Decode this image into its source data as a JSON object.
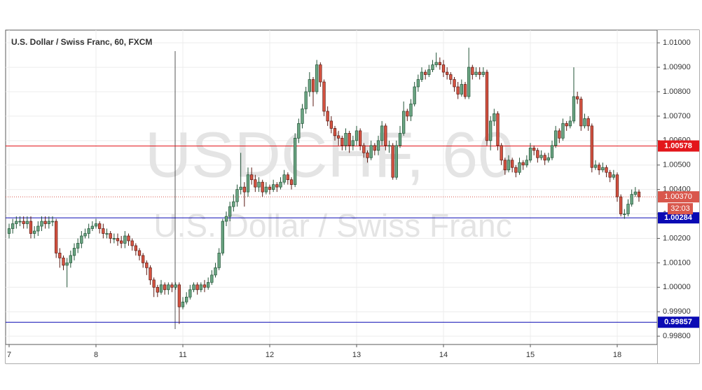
{
  "chart_data": {
    "type": "candlestick",
    "title": "U.S. Dollar / Swiss Franc, 60, FXCM",
    "watermark": "USDCHF, 60",
    "watermark_subtitle": "U.S. Dollar / Swiss Franc",
    "categories": [
      "7",
      null,
      null,
      null,
      null,
      null,
      null,
      null,
      null,
      null,
      null,
      null,
      null,
      null,
      null,
      null,
      null,
      null,
      null,
      null,
      null,
      null,
      null,
      null,
      "8",
      null,
      null,
      null,
      null,
      null,
      null,
      null,
      null,
      null,
      null,
      null,
      null,
      null,
      null,
      null,
      null,
      null,
      null,
      null,
      null,
      null,
      null,
      null,
      "11",
      null,
      null,
      null,
      null,
      null,
      null,
      null,
      null,
      null,
      null,
      null,
      null,
      null,
      null,
      null,
      null,
      null,
      null,
      null,
      null,
      null,
      null,
      null,
      "12",
      null,
      null,
      null,
      null,
      null,
      null,
      null,
      null,
      null,
      null,
      null,
      null,
      null,
      null,
      null,
      null,
      null,
      null,
      null,
      null,
      null,
      null,
      null,
      "13",
      null,
      null,
      null,
      null,
      null,
      null,
      null,
      null,
      null,
      null,
      null,
      null,
      null,
      null,
      null,
      null,
      null,
      null,
      null,
      null,
      null,
      null,
      null,
      "14",
      null,
      null,
      null,
      null,
      null,
      null,
      null,
      null,
      null,
      null,
      null,
      null,
      null,
      null,
      null,
      null,
      null,
      null,
      null,
      null,
      null,
      null,
      null,
      "15",
      null,
      null,
      null,
      null,
      null,
      null,
      null,
      null,
      null,
      null,
      null,
      null,
      null,
      null,
      null,
      null,
      null,
      null,
      null,
      null,
      null,
      null,
      null,
      "18",
      null,
      null,
      null,
      null,
      null,
      null
    ],
    "open": [
      1.0022,
      1.0024,
      1.0026,
      1.0027,
      1.0027,
      1.0026,
      1.0027,
      1.0022,
      1.0023,
      1.0025,
      1.0027,
      1.0026,
      1.0027,
      1.0027,
      1.0014,
      1.0012,
      1.0009,
      1.001,
      1.0013,
      1.0016,
      1.0018,
      1.0021,
      1.0022,
      1.0024,
      1.0025,
      1.0026,
      1.0024,
      1.0022,
      1.0022,
      1.002,
      1.002,
      1.0019,
      1.0018,
      1.0021,
      1.0019,
      1.0017,
      1.0015,
      1.0013,
      1.001,
      1.0008,
      1.0003,
      1,
      0.9998,
      1.0001,
      0.9999,
      1.0001,
      1,
      1.0001,
      0.9992,
      0.9994,
      0.9996,
      0.9999,
      1.0001,
      0.9999,
      1.0001,
      1,
      1.0002,
      1.0005,
      1.0008,
      1.0014,
      1.0027,
      1.0029,
      1.0033,
      1.0035,
      1.004,
      1.0041,
      1.0039,
      1.0046,
      1.0044,
      1.0041,
      1.0043,
      1.0039,
      1.0041,
      1.004,
      1.0042,
      1.0041,
      1.0043,
      1.0046,
      1.0044,
      1.0042,
      1.0061,
      1.0067,
      1.0073,
      1.008,
      1.0085,
      1.008,
      1.0091,
      1.0084,
      1.0072,
      1.0068,
      1.0065,
      1.0062,
      1.0061,
      1.0058,
      1.0063,
      1.0058,
      1.006,
      1.0064,
      1.0058,
      1.0055,
      1.0053,
      1.0058,
      1.0056,
      1.006,
      1.0066,
      1.0058,
      1.0058,
      1.0045,
      1.0058,
      1.0063,
      1.0072,
      1.007,
      1.0075,
      1.0082,
      1.0085,
      1.0088,
      1.0087,
      1.0089,
      1.0091,
      1.0092,
      1.0091,
      1.0088,
      1.0087,
      1.0085,
      1.0082,
      1.0079,
      1.0083,
      1.0078,
      1.009,
      1.0087,
      1.0088,
      1.0087,
      1.0088,
      1.006,
      1.0068,
      1.0071,
      1.0058,
      1.0052,
      1.0048,
      1.0052,
      1.0049,
      1.0047,
      1.0051,
      1.005,
      1.0052,
      1.0057,
      1.0056,
      1.0053,
      1.0054,
      1.0052,
      1.0053,
      1.0058,
      1.0064,
      1.0061,
      1.0067,
      1.0066,
      1.0068,
      1.0078,
      1.0077,
      1.0066,
      1.0069,
      1.0066,
      1.0049,
      1.005,
      1.0048,
      1.0049,
      1.0047,
      1.0045,
      1.0046,
      1.0037,
      1.003,
      1.003,
      1.0034,
      1.0038,
      1.0039
    ],
    "high": [
      1.0026,
      1.0028,
      1.0029,
      1.0029,
      1.0029,
      1.0029,
      1.0029,
      1.0025,
      1.0027,
      1.0029,
      1.0029,
      1.0029,
      1.0029,
      1.0028,
      1.0016,
      1.0013,
      1.0012,
      1.0015,
      1.0018,
      1.002,
      1.0023,
      1.0024,
      1.0026,
      1.0027,
      1.0028,
      1.0027,
      1.0026,
      1.0024,
      1.0023,
      1.0022,
      1.0022,
      1.0021,
      1.0023,
      1.0022,
      1.002,
      1.0018,
      1.0016,
      1.0014,
      1.0011,
      1.0009,
      1.0004,
      1.0001,
      1.0003,
      1.0002,
      1.0002,
      1.0002,
      1.0002,
      1.0002,
      0.9996,
      0.9998,
      1.0001,
      1.0002,
      1.0002,
      1.0002,
      1.0003,
      1.0004,
      1.0007,
      1.001,
      1.0016,
      1.0028,
      1.0031,
      1.0035,
      1.0038,
      1.0042,
      1.0055,
      1.0043,
      1.0049,
      1.0049,
      1.0046,
      1.0045,
      1.0044,
      1.0043,
      1.0042,
      1.0044,
      1.0043,
      1.0045,
      1.0048,
      1.0047,
      1.0045,
      1.0063,
      1.0069,
      1.0075,
      1.0082,
      1.0088,
      1.0086,
      1.0093,
      1.0092,
      1.0085,
      1.0074,
      1.007,
      1.0066,
      1.0064,
      1.0062,
      1.0065,
      1.0064,
      1.0062,
      1.0066,
      1.0065,
      1.0059,
      1.0056,
      1.006,
      1.0059,
      1.0062,
      1.0068,
      1.0067,
      1.006,
      1.0059,
      1.006,
      1.0066,
      1.0076,
      1.0073,
      1.0077,
      1.0084,
      1.0087,
      1.009,
      1.0089,
      1.0091,
      1.0093,
      1.0096,
      1.0094,
      1.0093,
      1.009,
      1.0088,
      1.0086,
      1.0084,
      1.0085,
      1.0084,
      1.0098,
      1.0091,
      1.009,
      1.009,
      1.009,
      1.0089,
      1.007,
      1.0073,
      1.0072,
      1.0059,
      1.0053,
      1.0054,
      1.0053,
      1.005,
      1.0053,
      1.0052,
      1.0054,
      1.0059,
      1.0058,
      1.0057,
      1.0056,
      1.0055,
      1.0055,
      1.006,
      1.0066,
      1.0065,
      1.0069,
      1.0068,
      1.007,
      1.009,
      1.008,
      1.0078,
      1.0071,
      1.007,
      1.0067,
      1.0052,
      1.0051,
      1.0051,
      1.005,
      1.0048,
      1.0048,
      1.0047,
      1.0038,
      1.0032,
      1.0036,
      1.004,
      1.0041,
      1.004
    ],
    "low": [
      1.002,
      1.0022,
      1.0024,
      1.0025,
      1.0024,
      1.0024,
      1.002,
      1.002,
      1.0021,
      1.0023,
      1.0024,
      1.0024,
      1.0025,
      1.0012,
      1.0008,
      1.0007,
      1,
      1.0008,
      1.0011,
      1.0014,
      1.0016,
      1.002,
      1.002,
      1.0023,
      1.0024,
      1.0022,
      1.002,
      1.002,
      1.0018,
      1.0018,
      1.0017,
      1.0016,
      1.0016,
      1.0017,
      1.0015,
      1.0013,
      1.0011,
      1.0008,
      1.0005,
      1.0001,
      0.9996,
      0.9996,
      0.9997,
      0.9997,
      0.9997,
      0.9998,
      0.9999,
      0.9985,
      0.9991,
      0.9993,
      0.9995,
      0.9998,
      0.9997,
      0.9998,
      0.9998,
      0.9999,
      1.0001,
      1.0004,
      1.0007,
      1.0013,
      1.0025,
      1.0027,
      1.0031,
      1.0033,
      1.0038,
      1.0033,
      1.0037,
      1.0042,
      1.0039,
      1.0039,
      1.0037,
      1.0038,
      1.0038,
      1.0039,
      1.0039,
      1.004,
      1.0042,
      1.0042,
      1.004,
      1.0041,
      1.0059,
      1.0065,
      1.0071,
      1.0078,
      1.0074,
      1.0079,
      1.0082,
      1.007,
      1.0066,
      1.0063,
      1.006,
      1.0058,
      1.0056,
      1.0056,
      1.0055,
      1.0056,
      1.0058,
      1.0056,
      1.0053,
      1.0051,
      1.0052,
      1.0054,
      1.0054,
      1.0058,
      1.0056,
      1.0055,
      1.0044,
      1.0044,
      1.0057,
      1.0062,
      1.0068,
      1.0068,
      1.0074,
      1.008,
      1.0084,
      1.0085,
      1.0086,
      1.0088,
      1.009,
      1.0089,
      1.0086,
      1.0085,
      1.0083,
      1.008,
      1.0077,
      1.0078,
      1.0077,
      1.0077,
      1.0085,
      1.0086,
      1.0085,
      1.0086,
      1.0058,
      1.0056,
      1.0066,
      1.0056,
      1.005,
      1.0046,
      1.0047,
      1.0047,
      1.0045,
      1.0046,
      1.0048,
      1.0049,
      1.0051,
      1.0054,
      1.0051,
      1.0052,
      1.005,
      1.0051,
      1.0052,
      1.0057,
      1.0059,
      1.006,
      1.0064,
      1.0065,
      1.0067,
      1.0075,
      1.0064,
      1.0065,
      1.0064,
      1.0047,
      1.0048,
      1.0046,
      1.0047,
      1.0045,
      1.0043,
      1.0044,
      1.0035,
      1.0029,
      1.0028,
      1.0029,
      1.0033,
      1.0037,
      1.0035
    ],
    "close": [
      1.0024,
      1.0026,
      1.0027,
      1.0027,
      1.0026,
      1.0027,
      1.0022,
      1.0023,
      1.0025,
      1.0027,
      1.0026,
      1.0027,
      1.0027,
      1.0014,
      1.0012,
      1.0009,
      1.001,
      1.0013,
      1.0016,
      1.0018,
      1.0021,
      1.0022,
      1.0024,
      1.0025,
      1.0026,
      1.0024,
      1.0022,
      1.0022,
      1.002,
      1.002,
      1.0019,
      1.0018,
      1.0021,
      1.0019,
      1.0017,
      1.0015,
      1.0013,
      1.001,
      1.0008,
      1.0003,
      1,
      0.9998,
      1.0001,
      0.9999,
      1.0001,
      1,
      1.0001,
      0.9992,
      0.9994,
      0.9996,
      0.9999,
      1.0001,
      0.9999,
      1.0001,
      1,
      1.0002,
      1.0005,
      1.0008,
      1.0014,
      1.0027,
      1.0029,
      1.0033,
      1.0035,
      1.004,
      1.0041,
      1.0039,
      1.0046,
      1.0044,
      1.0041,
      1.0043,
      1.0039,
      1.0041,
      1.004,
      1.0042,
      1.0041,
      1.0043,
      1.0046,
      1.0044,
      1.0042,
      1.0061,
      1.0067,
      1.0073,
      1.008,
      1.0085,
      1.008,
      1.0091,
      1.0084,
      1.0072,
      1.0068,
      1.0065,
      1.0062,
      1.0061,
      1.0058,
      1.0063,
      1.0058,
      1.006,
      1.0064,
      1.0058,
      1.0055,
      1.0053,
      1.0058,
      1.0056,
      1.006,
      1.0066,
      1.0058,
      1.0058,
      1.0045,
      1.0058,
      1.0063,
      1.0072,
      1.007,
      1.0075,
      1.0082,
      1.0085,
      1.0088,
      1.0087,
      1.0089,
      1.0091,
      1.0092,
      1.0091,
      1.0088,
      1.0087,
      1.0085,
      1.0082,
      1.0079,
      1.0083,
      1.0078,
      1.009,
      1.0087,
      1.0088,
      1.0087,
      1.0088,
      1.006,
      1.0068,
      1.0071,
      1.0058,
      1.0052,
      1.0048,
      1.0052,
      1.0049,
      1.0047,
      1.0051,
      1.005,
      1.0052,
      1.0057,
      1.0056,
      1.0053,
      1.0054,
      1.0052,
      1.0053,
      1.0058,
      1.0064,
      1.0061,
      1.0067,
      1.0066,
      1.0068,
      1.0078,
      1.0077,
      1.0066,
      1.0069,
      1.0066,
      1.0049,
      1.005,
      1.0048,
      1.0049,
      1.0047,
      1.0045,
      1.0046,
      1.0037,
      1.003,
      1.003,
      1.0034,
      1.0038,
      1.0039,
      1.0037
    ],
    "up_color": "#6ba583",
    "up_border": "#225437",
    "down_color": "#d75442",
    "down_border": "#5b1a13",
    "ylim": [
      0.99766,
      1.01052
    ],
    "yticks": [
      {
        "value": 0.998,
        "label": "0.99800"
      },
      {
        "value": 0.999,
        "label": "0.99900"
      },
      {
        "value": 1,
        "label": "1.00000"
      },
      {
        "value": 1.001,
        "label": "1.00100"
      },
      {
        "value": 1.002,
        "label": "1.00200"
      },
      {
        "value": 1.003,
        "label": "1.00300"
      },
      {
        "value": 1.004,
        "label": "1.00400"
      },
      {
        "value": 1.005,
        "label": "1.00500"
      },
      {
        "value": 1.006,
        "label": "1.00600"
      },
      {
        "value": 1.007,
        "label": "1.00700"
      },
      {
        "value": 1.008,
        "label": "1.00800"
      },
      {
        "value": 1.009,
        "label": "1.00900"
      },
      {
        "value": 1.01,
        "label": "1.01000"
      }
    ],
    "grid": true,
    "horizontal_lines": [
      {
        "value": 1.00578,
        "color": "#e3161b"
      },
      {
        "value": 1.00284,
        "color": "#0a0ab4"
      },
      {
        "value": 0.99857,
        "color": "#0a0ab4"
      }
    ],
    "last_price": {
      "value": 1.0037,
      "label": "1.00370",
      "countdown": "32:03",
      "color": "#d9574c"
    }
  }
}
